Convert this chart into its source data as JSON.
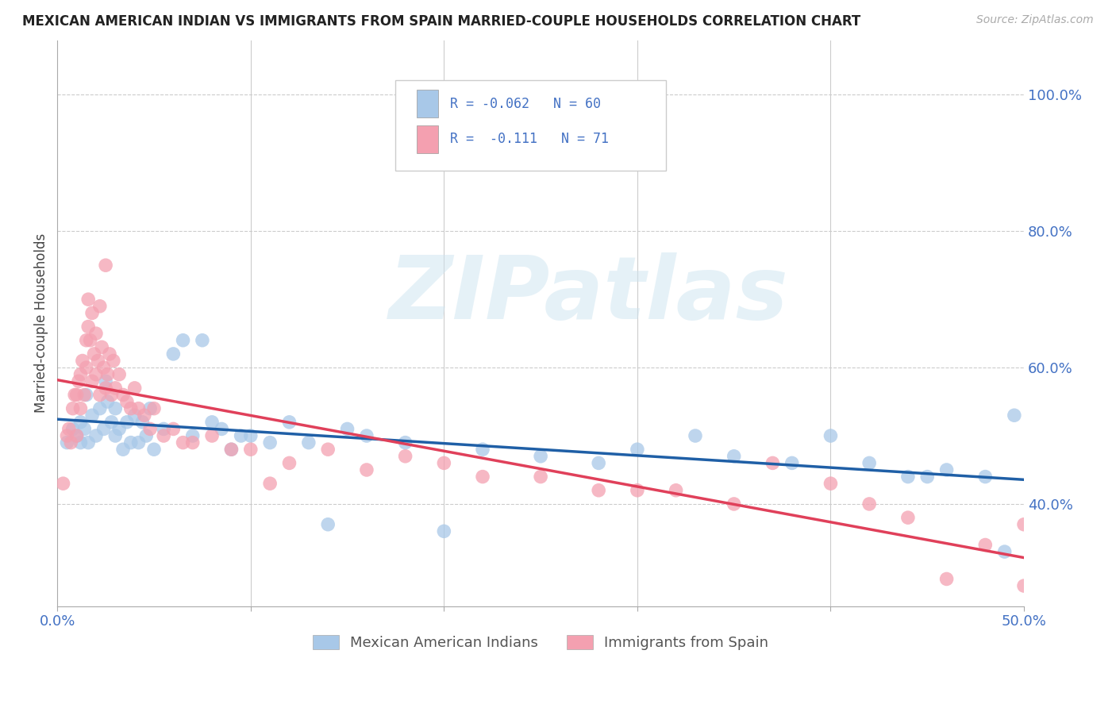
{
  "title": "MEXICAN AMERICAN INDIAN VS IMMIGRANTS FROM SPAIN MARRIED-COUPLE HOUSEHOLDS CORRELATION CHART",
  "source": "Source: ZipAtlas.com",
  "ylabel": "Married-couple Households",
  "color_blue": "#a8c8e8",
  "color_pink": "#f4a0b0",
  "color_blue_line": "#1f5fa6",
  "color_pink_line": "#e0405a",
  "watermark": "ZIPatlas",
  "legend_r1": "-0.062",
  "legend_n1": "60",
  "legend_r2": "-0.111",
  "legend_n2": "71",
  "xlim": [
    0.0,
    0.5
  ],
  "ylim": [
    0.25,
    1.08
  ],
  "ytick_vals": [
    0.4,
    0.6,
    0.8,
    1.0
  ],
  "ytick_labels": [
    "40.0%",
    "60.0%",
    "80.0%",
    "100.0%"
  ],
  "xtick_vals": [
    0.0,
    0.1,
    0.2,
    0.3,
    0.4,
    0.5
  ],
  "xtick_labels": [
    "0.0%",
    "",
    "",
    "",
    "",
    "50.0%"
  ],
  "blue_x": [
    0.005,
    0.008,
    0.01,
    0.012,
    0.012,
    0.014,
    0.015,
    0.016,
    0.018,
    0.02,
    0.022,
    0.024,
    0.025,
    0.026,
    0.028,
    0.03,
    0.03,
    0.032,
    0.034,
    0.036,
    0.038,
    0.04,
    0.042,
    0.044,
    0.046,
    0.048,
    0.05,
    0.055,
    0.06,
    0.065,
    0.07,
    0.075,
    0.08,
    0.085,
    0.09,
    0.095,
    0.1,
    0.11,
    0.12,
    0.13,
    0.14,
    0.15,
    0.16,
    0.18,
    0.2,
    0.22,
    0.25,
    0.28,
    0.3,
    0.33,
    0.35,
    0.38,
    0.4,
    0.42,
    0.44,
    0.45,
    0.46,
    0.48,
    0.49,
    0.495
  ],
  "blue_y": [
    0.49,
    0.51,
    0.5,
    0.49,
    0.52,
    0.51,
    0.56,
    0.49,
    0.53,
    0.5,
    0.54,
    0.51,
    0.58,
    0.55,
    0.52,
    0.5,
    0.54,
    0.51,
    0.48,
    0.52,
    0.49,
    0.53,
    0.49,
    0.52,
    0.5,
    0.54,
    0.48,
    0.51,
    0.62,
    0.64,
    0.5,
    0.64,
    0.52,
    0.51,
    0.48,
    0.5,
    0.5,
    0.49,
    0.52,
    0.49,
    0.37,
    0.51,
    0.5,
    0.49,
    0.36,
    0.48,
    0.47,
    0.46,
    0.48,
    0.5,
    0.47,
    0.46,
    0.5,
    0.46,
    0.44,
    0.44,
    0.45,
    0.44,
    0.33,
    0.53
  ],
  "pink_x": [
    0.003,
    0.005,
    0.006,
    0.007,
    0.008,
    0.009,
    0.01,
    0.01,
    0.011,
    0.012,
    0.012,
    0.013,
    0.014,
    0.015,
    0.015,
    0.016,
    0.016,
    0.017,
    0.018,
    0.018,
    0.019,
    0.02,
    0.02,
    0.021,
    0.022,
    0.022,
    0.023,
    0.024,
    0.025,
    0.025,
    0.026,
    0.027,
    0.028,
    0.029,
    0.03,
    0.032,
    0.034,
    0.036,
    0.038,
    0.04,
    0.042,
    0.045,
    0.048,
    0.05,
    0.055,
    0.06,
    0.065,
    0.07,
    0.08,
    0.09,
    0.1,
    0.11,
    0.12,
    0.14,
    0.16,
    0.18,
    0.2,
    0.22,
    0.25,
    0.28,
    0.3,
    0.32,
    0.35,
    0.37,
    0.4,
    0.42,
    0.44,
    0.46,
    0.48,
    0.5,
    0.5
  ],
  "pink_y": [
    0.43,
    0.5,
    0.51,
    0.49,
    0.54,
    0.56,
    0.5,
    0.56,
    0.58,
    0.54,
    0.59,
    0.61,
    0.56,
    0.64,
    0.6,
    0.66,
    0.7,
    0.64,
    0.58,
    0.68,
    0.62,
    0.59,
    0.65,
    0.61,
    0.56,
    0.69,
    0.63,
    0.6,
    0.57,
    0.75,
    0.59,
    0.62,
    0.56,
    0.61,
    0.57,
    0.59,
    0.56,
    0.55,
    0.54,
    0.57,
    0.54,
    0.53,
    0.51,
    0.54,
    0.5,
    0.51,
    0.49,
    0.49,
    0.5,
    0.48,
    0.48,
    0.43,
    0.46,
    0.48,
    0.45,
    0.47,
    0.46,
    0.44,
    0.44,
    0.42,
    0.42,
    0.42,
    0.4,
    0.46,
    0.43,
    0.4,
    0.38,
    0.29,
    0.34,
    0.37,
    0.28
  ]
}
